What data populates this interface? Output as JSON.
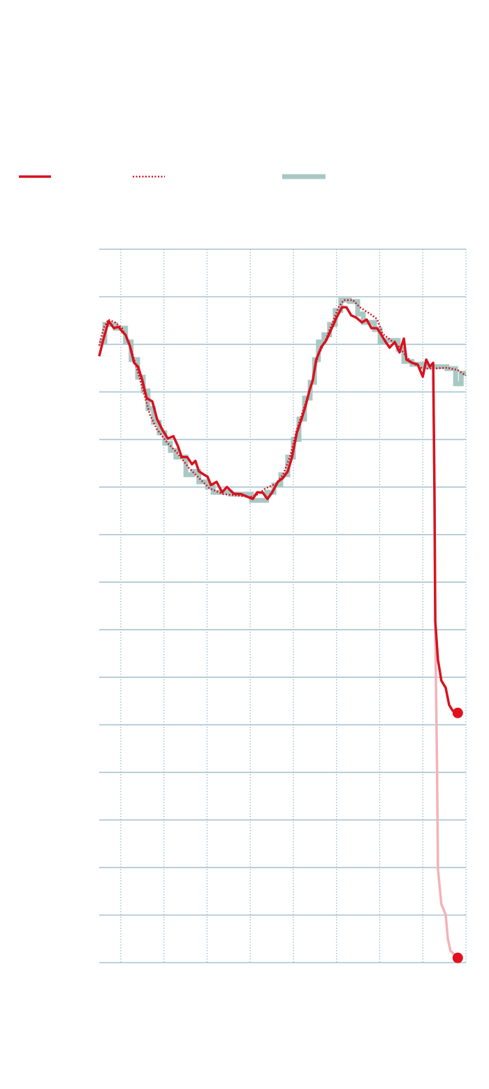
{
  "chart_data": {
    "type": "line",
    "xlim": [
      -0.5,
      8
    ],
    "xticks": [
      0,
      1,
      2,
      3,
      4,
      5,
      6,
      7,
      8
    ],
    "ylim": [
      0,
      15
    ],
    "yticks": [
      0,
      1,
      2,
      3,
      4,
      5,
      6,
      7,
      8,
      9,
      10,
      11,
      12,
      13,
      14,
      15
    ],
    "grid": true,
    "series": [
      {
        "color": "#d7121f",
        "style": "solid",
        "legend_entry": true,
        "end_marker": true,
        "x": [
          -0.5,
          -0.4,
          -0.28,
          -0.16,
          -0.05,
          0.03,
          0.11,
          0.21,
          0.31,
          0.4,
          0.5,
          0.6,
          0.73,
          0.84,
          0.96,
          1.09,
          1.22,
          1.33,
          1.41,
          1.54,
          1.65,
          1.73,
          1.81,
          1.93,
          2.01,
          2.09,
          2.22,
          2.35,
          2.46,
          2.62,
          2.79,
          2.95,
          3.06,
          3.16,
          3.29,
          3.4,
          3.51,
          3.64,
          3.76,
          3.87,
          3.97,
          4.08,
          4.19,
          4.29,
          4.37,
          4.45,
          4.53,
          4.65,
          4.76,
          4.89,
          5.0,
          5.13,
          5.23,
          5.34,
          5.46,
          5.59,
          5.7,
          5.81,
          5.94,
          6.04,
          6.14,
          6.23,
          6.35,
          6.46,
          6.56,
          6.62,
          6.75,
          6.88,
          7.0,
          7.08,
          7.16,
          7.24,
          7.27,
          7.29,
          7.35,
          7.43,
          7.53,
          7.61,
          7.69,
          7.81
        ],
        "values": [
          12.75,
          13.12,
          13.49,
          13.34,
          13.37,
          13.27,
          13.2,
          12.97,
          12.61,
          12.53,
          12.24,
          11.87,
          11.8,
          11.43,
          11.21,
          11.02,
          11.07,
          10.85,
          10.63,
          10.63,
          10.48,
          10.55,
          10.33,
          10.26,
          10.22,
          10.04,
          10.11,
          9.89,
          10.0,
          9.86,
          9.85,
          9.79,
          9.75,
          9.89,
          9.88,
          9.75,
          9.89,
          10.11,
          10.19,
          10.33,
          10.63,
          11.14,
          11.43,
          11.73,
          12.02,
          12.24,
          12.68,
          12.95,
          13.08,
          13.34,
          13.56,
          13.78,
          13.78,
          13.61,
          13.56,
          13.46,
          13.52,
          13.34,
          13.34,
          13.2,
          13.05,
          12.93,
          13.05,
          12.83,
          13.12,
          12.68,
          12.61,
          12.58,
          12.32,
          12.68,
          12.53,
          12.61,
          9.97,
          7.18,
          6.37,
          5.93,
          5.78,
          5.42,
          5.3,
          5.25
        ]
      },
      {
        "color": "#d7121f",
        "style": "dotted",
        "legend_entry": true,
        "end_marker": false,
        "x": [
          -0.5,
          -0.4,
          -0.29,
          -0.13,
          0.03,
          0.19,
          0.36,
          0.52,
          0.68,
          0.84,
          1.09,
          1.33,
          1.57,
          1.81,
          2.06,
          2.38,
          2.7,
          3.0,
          3.19,
          3.35,
          3.6,
          3.76,
          3.92,
          4.08,
          4.24,
          4.4,
          4.57,
          4.73,
          4.89,
          5.05,
          5.17,
          5.38,
          5.54,
          5.78,
          5.94,
          6.07,
          6.27,
          6.43,
          6.59,
          6.75,
          7.0,
          7.24,
          7.56,
          7.81,
          8.0
        ],
        "values": [
          12.97,
          13.34,
          13.52,
          13.46,
          13.34,
          13.05,
          12.53,
          12.02,
          11.51,
          11.21,
          10.92,
          10.7,
          10.41,
          10.19,
          9.97,
          9.85,
          9.82,
          9.79,
          9.85,
          9.97,
          10.07,
          10.26,
          10.63,
          11.21,
          11.65,
          12.09,
          12.75,
          13.05,
          13.42,
          13.78,
          13.93,
          13.93,
          13.78,
          13.64,
          13.53,
          13.22,
          13.08,
          12.97,
          12.78,
          12.61,
          12.49,
          12.49,
          12.51,
          12.46,
          12.34
        ]
      },
      {
        "color": "#a8c8c4",
        "style": "step",
        "legend_entry": true,
        "end_marker": false,
        "x": [
          -0.5,
          -0.37,
          -0.13,
          0.11,
          0.24,
          0.39,
          0.52,
          0.63,
          0.76,
          0.89,
          1.02,
          1.15,
          1.28,
          1.51,
          1.67,
          1.81,
          2.01,
          2.14,
          2.54,
          3.03,
          3.38,
          3.55,
          3.71,
          3.87,
          4.0,
          4.13,
          4.26,
          4.39,
          4.49,
          4.58,
          4.71,
          4.84,
          4.97,
          5.1,
          5.3,
          5.49,
          5.62,
          5.88,
          6.01,
          6.14,
          6.43,
          6.56,
          6.75,
          7.0,
          7.56,
          7.76,
          7.89,
          8.0
        ],
        "values": [
          13.05,
          13.42,
          13.34,
          13.05,
          12.68,
          12.31,
          12.02,
          11.65,
          11.36,
          11.14,
          10.92,
          10.77,
          10.63,
          10.26,
          10.33,
          10.11,
          10.0,
          9.89,
          9.85,
          9.72,
          9.89,
          10.04,
          10.26,
          10.63,
          11.0,
          11.43,
          11.87,
          12.2,
          12.68,
          13.05,
          13.2,
          13.42,
          13.71,
          13.93,
          13.9,
          13.64,
          13.46,
          13.31,
          13.05,
          13.08,
          12.9,
          12.64,
          12.58,
          12.53,
          12.49,
          12.17,
          12.39,
          12.39
        ]
      },
      {
        "color": "#f2b3b8",
        "style": "solid",
        "legend_entry": false,
        "end_marker": true,
        "x": [
          7.24,
          7.27,
          7.29,
          7.33,
          7.35,
          7.43,
          7.53,
          7.58,
          7.64,
          7.81
        ],
        "values": [
          12.61,
          9.97,
          7.03,
          4.1,
          1.97,
          1.23,
          1.01,
          0.5,
          0.25,
          0.1
        ]
      }
    ]
  }
}
